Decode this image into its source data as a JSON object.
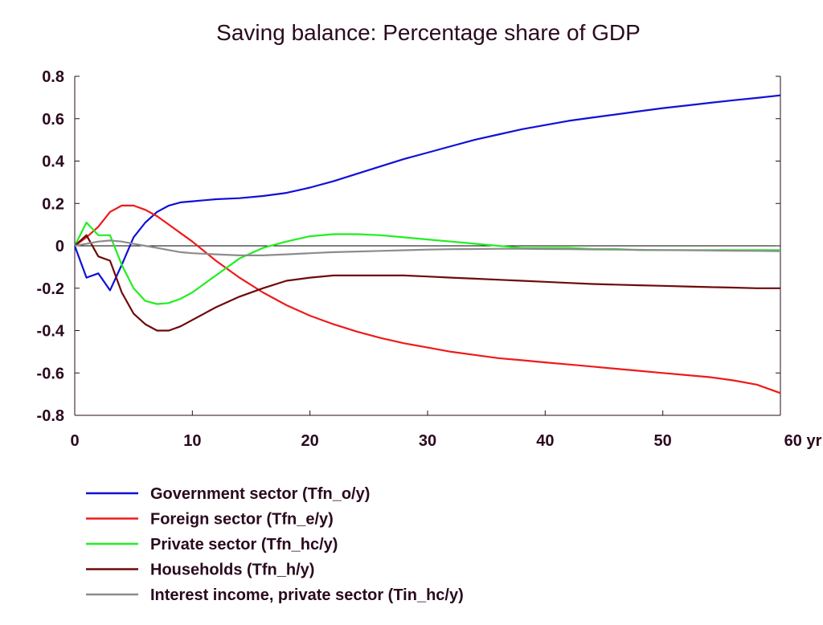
{
  "chart_data": {
    "type": "line",
    "title": "Saving balance: Percentage share of GDP",
    "xlabel": "",
    "ylabel": "",
    "x_unit_label": "yr",
    "xlim": [
      0,
      60
    ],
    "ylim": [
      -0.8,
      0.8
    ],
    "xticks": [
      0,
      10,
      20,
      30,
      40,
      50,
      60
    ],
    "xtick_labels": [
      "0",
      "10",
      "20",
      "30",
      "40",
      "50",
      "60 yr"
    ],
    "yticks": [
      0.8,
      0.6,
      0.4,
      0.2,
      0,
      -0.2,
      -0.4,
      -0.6,
      -0.8
    ],
    "ytick_labels": [
      "0.8",
      "0.6",
      "0.4",
      "0.2",
      "0",
      "-0.2",
      "-0.4",
      "-0.6",
      "-0.8"
    ],
    "grid": false,
    "zero_line": true,
    "legend_position": "bottom",
    "series": [
      {
        "name": "Government sector (Tfn_o/y)",
        "color": "#1010d8",
        "x": [
          0,
          1,
          2,
          3,
          4,
          5,
          6,
          7,
          8,
          9,
          10,
          12,
          14,
          16,
          18,
          20,
          22,
          24,
          26,
          28,
          30,
          32,
          34,
          36,
          38,
          40,
          42,
          44,
          46,
          48,
          50,
          52,
          54,
          56,
          58,
          60
        ],
        "y": [
          0,
          -0.15,
          -0.13,
          -0.21,
          -0.09,
          0.04,
          0.11,
          0.16,
          0.19,
          0.205,
          0.21,
          0.22,
          0.225,
          0.235,
          0.25,
          0.275,
          0.305,
          0.34,
          0.375,
          0.41,
          0.44,
          0.47,
          0.5,
          0.525,
          0.55,
          0.57,
          0.59,
          0.605,
          0.62,
          0.635,
          0.65,
          0.662,
          0.675,
          0.687,
          0.698,
          0.71
        ]
      },
      {
        "name": "Foreign sector (Tfn_e/y)",
        "color": "#ee1a1a",
        "x": [
          0,
          1,
          2,
          3,
          4,
          5,
          6,
          7,
          8,
          9,
          10,
          12,
          14,
          16,
          18,
          20,
          22,
          24,
          26,
          28,
          30,
          32,
          34,
          36,
          38,
          40,
          42,
          44,
          46,
          48,
          50,
          52,
          54,
          56,
          58,
          60
        ],
        "y": [
          0,
          0.04,
          0.09,
          0.16,
          0.19,
          0.19,
          0.17,
          0.14,
          0.1,
          0.06,
          0.02,
          -0.07,
          -0.15,
          -0.22,
          -0.28,
          -0.33,
          -0.37,
          -0.405,
          -0.435,
          -0.46,
          -0.48,
          -0.5,
          -0.515,
          -0.53,
          -0.54,
          -0.55,
          -0.56,
          -0.57,
          -0.58,
          -0.59,
          -0.6,
          -0.61,
          -0.62,
          -0.635,
          -0.655,
          -0.695
        ]
      },
      {
        "name": "Private sector (Tfn_hc/y)",
        "color": "#22ee22",
        "x": [
          0,
          1,
          2,
          3,
          4,
          5,
          6,
          7,
          8,
          9,
          10,
          12,
          14,
          16,
          18,
          20,
          22,
          24,
          26,
          28,
          30,
          32,
          34,
          36,
          38,
          40,
          42,
          44,
          46,
          48,
          50,
          52,
          54,
          56,
          58,
          60
        ],
        "y": [
          0,
          0.11,
          0.05,
          0.05,
          -0.09,
          -0.2,
          -0.26,
          -0.275,
          -0.27,
          -0.25,
          -0.22,
          -0.14,
          -0.06,
          -0.01,
          0.02,
          0.045,
          0.055,
          0.055,
          0.05,
          0.04,
          0.03,
          0.02,
          0.01,
          0.0,
          -0.01,
          -0.01,
          -0.01,
          -0.015,
          -0.015,
          -0.02,
          -0.02,
          -0.02,
          -0.02,
          -0.02,
          -0.02,
          -0.02
        ]
      },
      {
        "name": "Households (Tfn_h/y)",
        "color": "#6e0a0a",
        "x": [
          0,
          1,
          2,
          3,
          4,
          5,
          6,
          7,
          8,
          9,
          10,
          12,
          14,
          16,
          18,
          20,
          22,
          24,
          26,
          28,
          30,
          32,
          34,
          36,
          38,
          40,
          42,
          44,
          46,
          48,
          50,
          52,
          54,
          56,
          58,
          60
        ],
        "y": [
          0,
          0.05,
          -0.05,
          -0.07,
          -0.22,
          -0.32,
          -0.37,
          -0.4,
          -0.4,
          -0.38,
          -0.35,
          -0.29,
          -0.24,
          -0.2,
          -0.165,
          -0.15,
          -0.14,
          -0.14,
          -0.14,
          -0.14,
          -0.145,
          -0.15,
          -0.155,
          -0.16,
          -0.165,
          -0.17,
          -0.175,
          -0.18,
          -0.183,
          -0.186,
          -0.189,
          -0.192,
          -0.195,
          -0.197,
          -0.2,
          -0.2
        ]
      },
      {
        "name": "Interest income, private sector (Tin_hc/y)",
        "color": "#8c8c8c",
        "x": [
          0,
          1,
          2,
          3,
          4,
          5,
          6,
          7,
          8,
          9,
          10,
          12,
          14,
          16,
          18,
          20,
          22,
          24,
          26,
          28,
          30,
          32,
          34,
          36,
          38,
          40,
          42,
          44,
          46,
          48,
          50,
          52,
          54,
          56,
          58,
          60
        ],
        "y": [
          0,
          0.01,
          0.02,
          0.025,
          0.02,
          0.01,
          0.0,
          -0.01,
          -0.02,
          -0.03,
          -0.035,
          -0.04,
          -0.045,
          -0.045,
          -0.04,
          -0.035,
          -0.03,
          -0.027,
          -0.024,
          -0.021,
          -0.018,
          -0.016,
          -0.015,
          -0.014,
          -0.014,
          -0.015,
          -0.016,
          -0.017,
          -0.018,
          -0.019,
          -0.02,
          -0.021,
          -0.022,
          -0.023,
          -0.024,
          -0.025
        ]
      }
    ]
  }
}
